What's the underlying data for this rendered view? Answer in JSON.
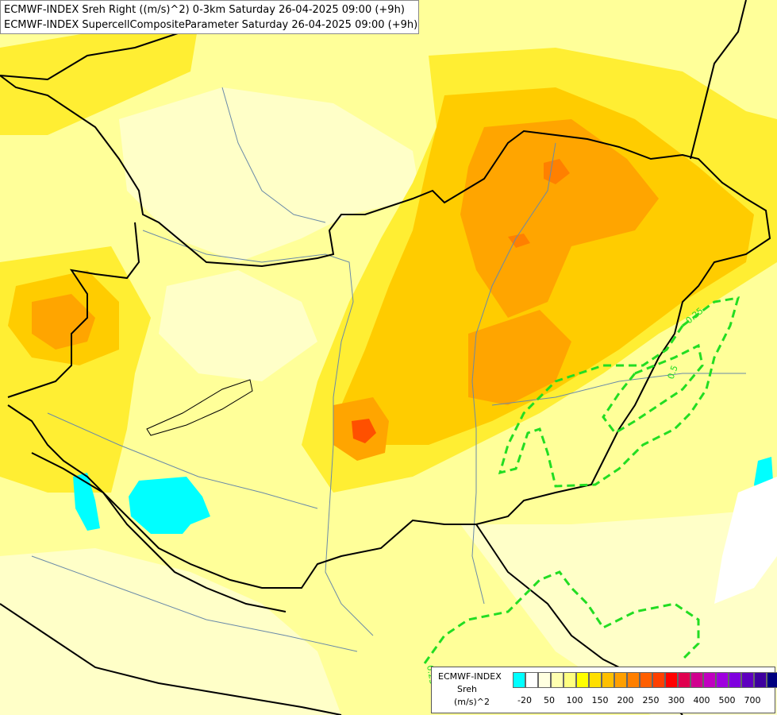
{
  "title": {
    "line1": "ECMWF-INDEX Sreh Right ((m/s)^2) 0-3km Saturday 26-04-2025 09:00 (+9h)",
    "line2": "ECMWF-INDEX SupercellCompositeParameter Saturday 26-04-2025 09:00 (+9h)"
  },
  "legend": {
    "title_lines": [
      "ECMWF-INDEX",
      "Sreh",
      "(m/s)^2"
    ],
    "colors": [
      "#00ffff",
      "#ffffff",
      "#ffffe0",
      "#ffffb0",
      "#ffff80",
      "#ffff00",
      "#ffdf00",
      "#ffbf00",
      "#ff9f00",
      "#ff7f00",
      "#ff5f00",
      "#ff3f00",
      "#ff0000",
      "#e0004f",
      "#d0008f",
      "#c000c0",
      "#9f00df",
      "#7f00df",
      "#5f00bf",
      "#3f009f",
      "#00007f"
    ],
    "tick_labels": [
      "-20",
      "50",
      "100",
      "150",
      "200",
      "250",
      "300",
      "400",
      "500",
      "700"
    ]
  },
  "contour_labels": [
    "0.25",
    "0.5",
    "0.25"
  ],
  "colors": {
    "contour": "#22dd22",
    "border": "#000000",
    "river": "#6a8aa8"
  }
}
